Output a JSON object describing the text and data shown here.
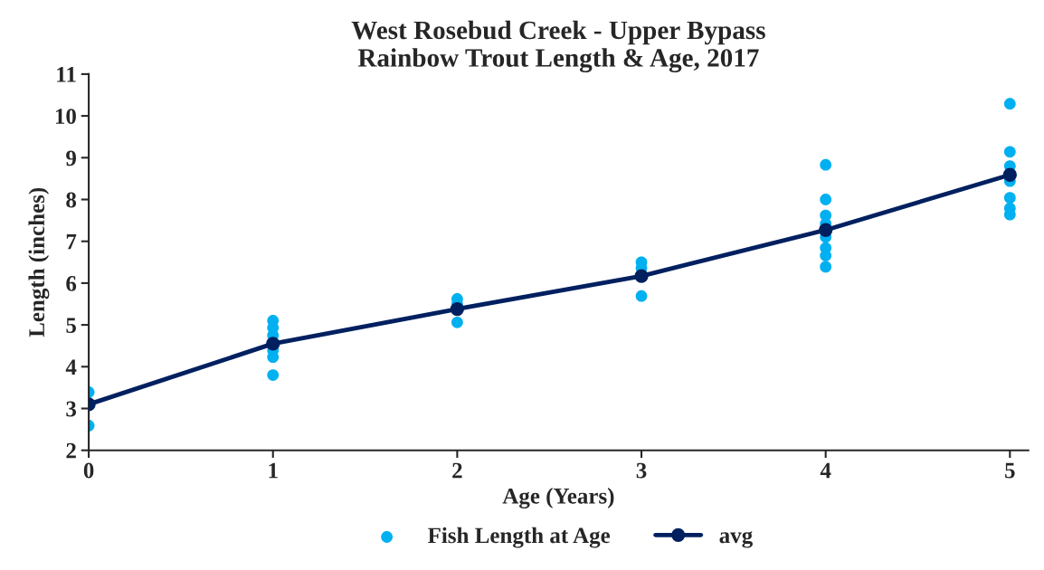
{
  "chart_data": {
    "type": "scatter",
    "title": "West Rosebud Creek - Upper Bypass\nRainbow Trout Length & Age, 2017",
    "xlabel": "Age (Years)",
    "ylabel": "Length (inches)",
    "series": [
      {
        "name": "Fish Length at Age",
        "color": "#00b0f0",
        "marker": "circle",
        "x": [
          0,
          0,
          1,
          1,
          1,
          1,
          1,
          1,
          2,
          2,
          2,
          3,
          3,
          3,
          4,
          4,
          4,
          4,
          4,
          4,
          4,
          4,
          5,
          5,
          5,
          5,
          5,
          5,
          5
        ],
        "values": [
          3.39,
          2.59,
          5.1,
          4.93,
          4.75,
          4.39,
          4.23,
          3.8,
          5.62,
          5.5,
          5.06,
          6.5,
          6.36,
          5.69,
          8.83,
          8.0,
          7.62,
          7.42,
          7.1,
          6.84,
          6.66,
          6.39,
          10.29,
          9.14,
          8.8,
          8.44,
          8.04,
          7.79,
          7.64
        ]
      },
      {
        "name": "avg",
        "type": "line",
        "color": "#002060",
        "marker": "circle",
        "line_style": "solid",
        "x": [
          0,
          1,
          2,
          3,
          4,
          5
        ],
        "values": [
          3.1,
          4.55,
          5.38,
          6.17,
          7.27,
          8.59
        ]
      }
    ],
    "xlim": [
      0,
      5.1
    ],
    "xticks": [
      0,
      1,
      2,
      3,
      4,
      5
    ],
    "ylim": [
      2,
      11
    ],
    "yticks": [
      2,
      3,
      4,
      5,
      6,
      7,
      8,
      9,
      10,
      11
    ],
    "grid": false,
    "legend": "bottom"
  }
}
